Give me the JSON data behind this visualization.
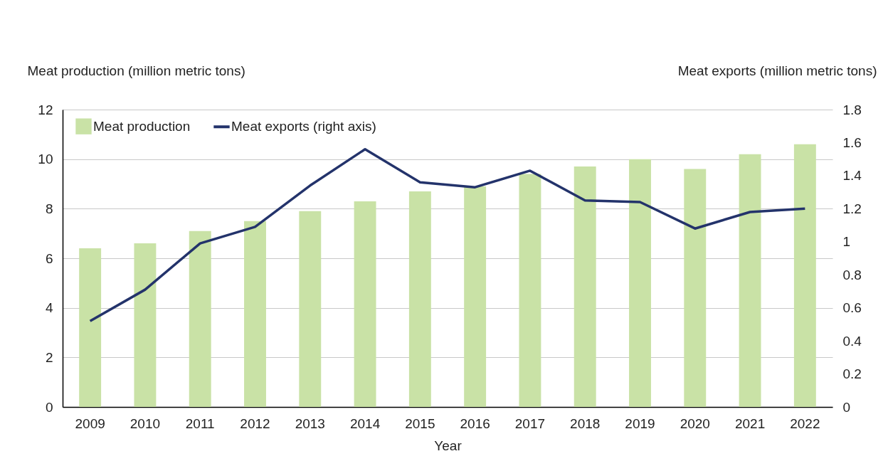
{
  "chart_data": {
    "type": "bar",
    "xlabel": "Year",
    "ylabel": "Meat production (million metric tons)",
    "y2label": "Meat exports (million metric tons)",
    "categories": [
      "2009",
      "2010",
      "2011",
      "2012",
      "2013",
      "2014",
      "2015",
      "2016",
      "2017",
      "2018",
      "2019",
      "2020",
      "2021",
      "2022"
    ],
    "series": [
      {
        "name": "Meat production",
        "color": "#c9e2a6",
        "values": [
          6.4,
          6.6,
          7.1,
          7.5,
          7.9,
          8.3,
          8.7,
          8.9,
          9.4,
          9.7,
          10.0,
          9.6,
          10.2,
          10.6
        ]
      },
      {
        "name": "Meat exports (right axis)",
        "type": "line",
        "axis": "y2",
        "color": "#23336b",
        "values": [
          0.52,
          0.71,
          0.99,
          1.09,
          1.34,
          1.56,
          1.36,
          1.33,
          1.43,
          1.25,
          1.24,
          1.08,
          1.18,
          1.2
        ]
      }
    ],
    "ylim": [
      0,
      12
    ],
    "yticks": [
      0,
      2,
      4,
      6,
      8,
      10,
      12
    ],
    "y2lim": [
      0,
      1.8
    ],
    "y2ticks": [
      0,
      0.2,
      0.4,
      0.6,
      0.8,
      1,
      1.2,
      1.4,
      1.6,
      1.8
    ],
    "grid": "y",
    "legend": "top left",
    "marker": "none",
    "line_style": "solid"
  }
}
